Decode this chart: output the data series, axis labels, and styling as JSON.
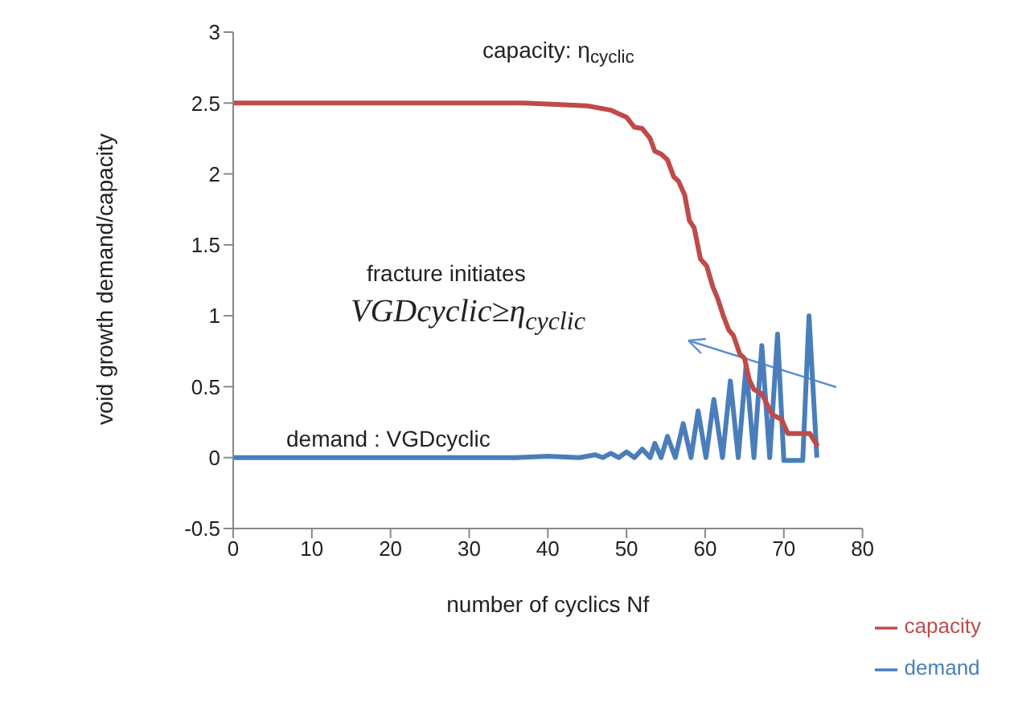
{
  "chart_data": {
    "type": "line",
    "xlabel": "number of cyclics    Nf",
    "ylabel": "void  growth  demand/capacity",
    "xlim": [
      0,
      80
    ],
    "xticks": [
      0,
      10,
      20,
      30,
      40,
      50,
      60,
      70,
      80
    ],
    "ylim": [
      -0.5,
      3
    ],
    "yticks": [
      -0.5,
      0,
      0.5,
      1,
      1.5,
      2,
      2.5,
      3
    ],
    "grid": false,
    "legend": "bottom right",
    "marker": "none",
    "line_style": "solid",
    "annotations": [
      "capacity: η$_{cyclic}$",
      "fracture initiates",
      "VGDcyclic≥η$_{cyclic}$",
      "demand : VGDcyclic"
    ],
    "series": [
      {
        "name": "demand",
        "color": "#4a7ebb",
        "x": [
          0,
          36,
          40,
          44,
          46,
          47,
          48,
          49,
          50,
          51,
          52,
          53,
          53.6,
          54.4,
          55.2,
          56.2,
          57.2,
          58.2,
          59.1,
          60.1,
          61.1,
          62.2,
          63.2,
          64.2,
          65.2,
          66.2,
          67.2,
          68.2,
          69.2,
          70,
          72.4,
          73.2,
          74.2
        ],
        "values": [
          0,
          0,
          0.01,
          0,
          0.02,
          0,
          0.03,
          0,
          0.04,
          0,
          0.06,
          0,
          0.1,
          0,
          0.15,
          0,
          0.24,
          0,
          0.33,
          0,
          0.41,
          0,
          0.54,
          0,
          0.65,
          0,
          0.79,
          0,
          0.87,
          -0.02,
          -0.02,
          1.0,
          0
        ]
      },
      {
        "name": "capacity",
        "color": "#be4b48",
        "x": [
          0,
          37,
          45,
          48,
          50,
          51,
          52,
          53,
          53.6,
          54.4,
          55.2,
          56,
          56.6,
          57.4,
          58,
          58.6,
          59.4,
          60.2,
          61,
          61.6,
          62.3,
          63,
          63.6,
          64.4,
          65,
          65.6,
          66.2,
          67.2,
          68,
          68.6,
          69.7,
          70.5,
          73.3,
          74.3
        ],
        "values": [
          2.5,
          2.5,
          2.48,
          2.45,
          2.4,
          2.33,
          2.32,
          2.25,
          2.16,
          2.14,
          2.1,
          1.98,
          1.95,
          1.85,
          1.67,
          1.62,
          1.4,
          1.35,
          1.2,
          1.12,
          1.0,
          0.9,
          0.86,
          0.73,
          0.7,
          0.55,
          0.48,
          0.45,
          0.36,
          0.3,
          0.27,
          0.17,
          0.17,
          0.08
        ]
      }
    ]
  }
}
